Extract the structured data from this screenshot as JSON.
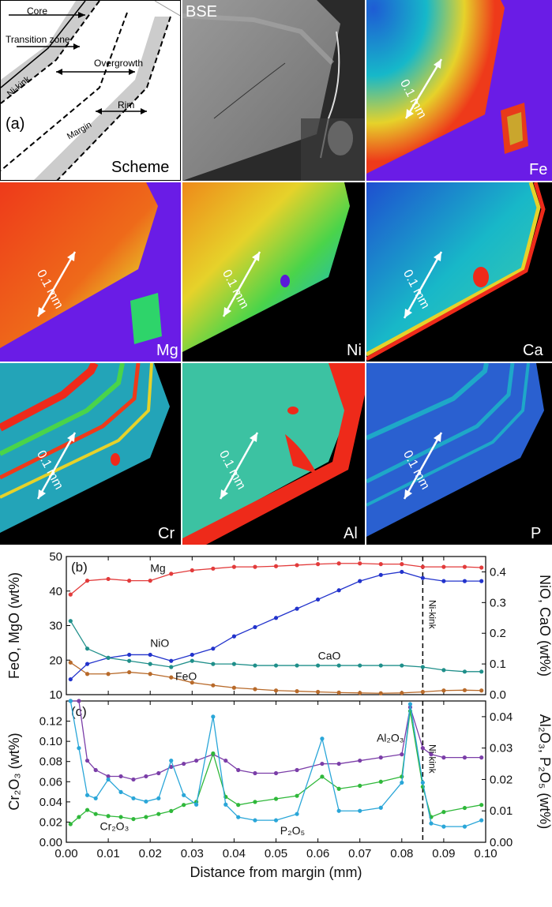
{
  "figure": {
    "scheme": {
      "labels": [
        "Core",
        "Transition zone",
        "Overgrowth",
        "Rim",
        "Margin",
        "Ni-kink"
      ],
      "panel_label": "(a)",
      "title": "Scheme"
    },
    "maps": [
      {
        "id": "bse",
        "label": "BSE"
      },
      {
        "id": "fe",
        "label": "Fe",
        "scale": "0.1 mm"
      },
      {
        "id": "mg",
        "label": "Mg",
        "scale": "0.1 mm"
      },
      {
        "id": "ni",
        "label": "Ni",
        "scale": "0.1 mm"
      },
      {
        "id": "ca",
        "label": "Ca",
        "scale": "0.1 mm"
      },
      {
        "id": "cr",
        "label": "Cr",
        "scale": "0.1 mm"
      },
      {
        "id": "al",
        "label": "Al",
        "scale": "0.1 mm"
      },
      {
        "id": "p",
        "label": "P",
        "scale": "0.1 mm"
      }
    ],
    "colors": {
      "mg": "#e23b3b",
      "nio": "#2233cc",
      "cao": "#1f8f8a",
      "feo": "#b86a2a",
      "al2o3": "#7b3ea8",
      "cr2o3": "#2fb83a",
      "p2o5": "#2aa6d8"
    }
  },
  "chart_data": [
    {
      "type": "line",
      "panel": "(b)",
      "xlabel": "Distance from margin (mm)",
      "ylabel_left": "FeO, MgO (wt%)",
      "ylabel_right": "NiO, CaO (wt%)",
      "xlim": [
        0,
        0.1
      ],
      "ylim_left": [
        10,
        50
      ],
      "ylim_right": [
        0,
        0.45
      ],
      "left_ticks": [
        "10",
        "20",
        "30",
        "40",
        "50"
      ],
      "right_ticks": [
        "0.0",
        "0.1",
        "0.2",
        "0.3",
        "0.4"
      ],
      "x": [
        0.001,
        0.005,
        0.01,
        0.015,
        0.02,
        0.025,
        0.03,
        0.035,
        0.04,
        0.045,
        0.05,
        0.055,
        0.06,
        0.065,
        0.07,
        0.075,
        0.08,
        0.085,
        0.09,
        0.095,
        0.099
      ],
      "annotation": "Ni-kink",
      "annotation_x": 0.085,
      "series": [
        {
          "name": "Mg",
          "axis": "left",
          "label_x": 0.02,
          "label_y": 45.5,
          "values": [
            39,
            43,
            43.5,
            43,
            43,
            45,
            46,
            46.5,
            47,
            47,
            47.2,
            47.5,
            47.8,
            48,
            48,
            47.8,
            47.8,
            47,
            47,
            47,
            46.8
          ]
        },
        {
          "name": "FeO",
          "axis": "left",
          "label_x": 0.026,
          "label_y": 14.2,
          "values": [
            19.3,
            16,
            16,
            16.5,
            16,
            15,
            13.5,
            12.7,
            12,
            11.6,
            11.2,
            11,
            10.8,
            10.6,
            10.5,
            10.4,
            10.5,
            10.8,
            11.2,
            11.3,
            11.2
          ]
        },
        {
          "name": "NiO",
          "axis": "right",
          "label_x": 0.02,
          "label_y": 0.155,
          "values": [
            0.05,
            0.1,
            0.12,
            0.13,
            0.13,
            0.11,
            0.13,
            0.15,
            0.19,
            0.22,
            0.25,
            0.28,
            0.31,
            0.34,
            0.37,
            0.39,
            0.4,
            0.38,
            0.37,
            0.37,
            0.37
          ]
        },
        {
          "name": "CaO",
          "axis": "right",
          "label_x": 0.06,
          "label_y": 0.115,
          "values": [
            0.24,
            0.15,
            0.12,
            0.11,
            0.1,
            0.09,
            0.11,
            0.1,
            0.1,
            0.095,
            0.095,
            0.095,
            0.095,
            0.095,
            0.095,
            0.095,
            0.095,
            0.09,
            0.08,
            0.075,
            0.075
          ]
        }
      ]
    },
    {
      "type": "line",
      "panel": "(c)",
      "xlabel": "Distance from margin (mm)",
      "ylabel_left": "Cr₂O₃ (wt%)",
      "ylabel_right": "Al₂O₃, P₂O₅ (wt%)",
      "xlim": [
        0,
        0.1
      ],
      "ylim_left": [
        0,
        0.14
      ],
      "ylim_right": [
        0,
        0.045
      ],
      "left_ticks": [
        "0.00",
        "0.02",
        "0.04",
        "0.06",
        "0.08",
        "0.10",
        "0.12"
      ],
      "right_ticks": [
        "0.00",
        "0.01",
        "0.02",
        "0.03",
        "0.04"
      ],
      "x_ticks": [
        "0.00",
        "0.01",
        "0.02",
        "0.03",
        "0.04",
        "0.05",
        "0.06",
        "0.07",
        "0.08",
        "0.09",
        "0.10"
      ],
      "x": [
        0.001,
        0.003,
        0.005,
        0.007,
        0.01,
        0.013,
        0.016,
        0.019,
        0.022,
        0.025,
        0.028,
        0.031,
        0.035,
        0.038,
        0.041,
        0.045,
        0.05,
        0.055,
        0.061,
        0.065,
        0.07,
        0.075,
        0.08,
        0.082,
        0.085,
        0.087,
        0.09,
        0.095,
        0.099
      ],
      "annotation": "Ni-kink",
      "annotation_x": 0.085,
      "series": [
        {
          "name": "Al₂O₃",
          "axis": "right",
          "label_x": 0.074,
          "label_y": 0.032,
          "values": [
            0.045,
            0.045,
            0.026,
            0.023,
            0.021,
            0.021,
            0.02,
            0.021,
            0.022,
            0.024,
            0.025,
            0.026,
            0.028,
            0.026,
            0.023,
            0.022,
            0.022,
            0.023,
            0.025,
            0.025,
            0.026,
            0.027,
            0.028,
            0.043,
            0.03,
            0.028,
            0.027,
            0.027,
            0.027
          ]
        },
        {
          "name": "Cr₂O₃",
          "axis": "left",
          "label_x": 0.008,
          "label_y": 0.012,
          "values": [
            0.018,
            0.025,
            0.032,
            0.028,
            0.026,
            0.025,
            0.023,
            0.025,
            0.028,
            0.031,
            0.037,
            0.04,
            0.088,
            0.045,
            0.037,
            0.04,
            0.043,
            0.046,
            0.065,
            0.053,
            0.056,
            0.06,
            0.065,
            0.13,
            0.055,
            0.025,
            0.03,
            0.034,
            0.037
          ]
        },
        {
          "name": "P₂O₅",
          "axis": "right",
          "label_x": 0.051,
          "label_y": 0.0025,
          "values": [
            0.045,
            0.03,
            0.015,
            0.014,
            0.02,
            0.016,
            0.014,
            0.013,
            0.014,
            0.026,
            0.015,
            0.012,
            0.04,
            0.012,
            0.008,
            0.007,
            0.007,
            0.009,
            0.033,
            0.01,
            0.01,
            0.011,
            0.019,
            0.044,
            0.019,
            0.006,
            0.005,
            0.005,
            0.007
          ]
        }
      ]
    }
  ]
}
